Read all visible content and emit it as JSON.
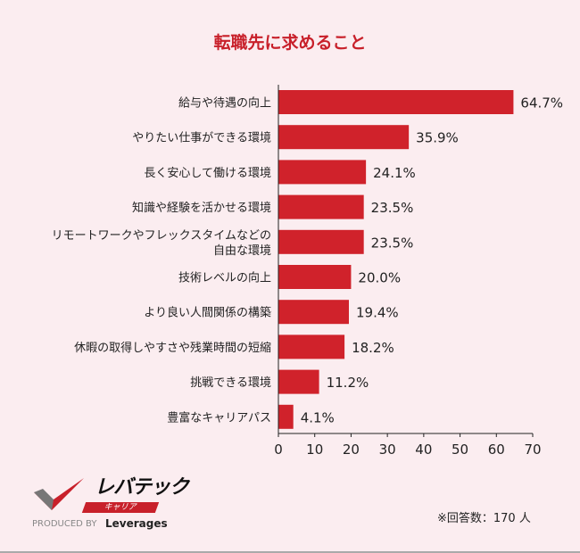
{
  "chart_data": {
    "type": "bar",
    "orientation": "horizontal",
    "title": "転職先に求めること",
    "categories": [
      [
        "給与や待遇の向上"
      ],
      [
        "やりたい仕事ができる環境"
      ],
      [
        "長く安心して働ける環境"
      ],
      [
        "知識や経験を活かせる環境"
      ],
      [
        "リモートワークやフレックスタイムなどの",
        "自由な環境"
      ],
      [
        "技術レベルの向上"
      ],
      [
        "より良い人間関係の構築"
      ],
      [
        "休暇の取得しやすさや残業時間の短縮"
      ],
      [
        "挑戦できる環境"
      ],
      [
        "豊富なキャリアパス"
      ]
    ],
    "values": [
      64.7,
      35.9,
      24.1,
      23.5,
      23.5,
      20.0,
      19.4,
      18.2,
      11.2,
      4.1
    ],
    "value_suffix": "%",
    "xlim": [
      0,
      70
    ],
    "xticks": [
      0,
      10,
      20,
      30,
      40,
      50,
      60,
      70
    ],
    "bar_color": "#d0222b",
    "grid": false
  },
  "logo": {
    "name": "レバテック",
    "sub": "キャリア",
    "produced": "PRODUCED BY",
    "brand": "Leverages"
  },
  "note": "※回答数：170 人"
}
